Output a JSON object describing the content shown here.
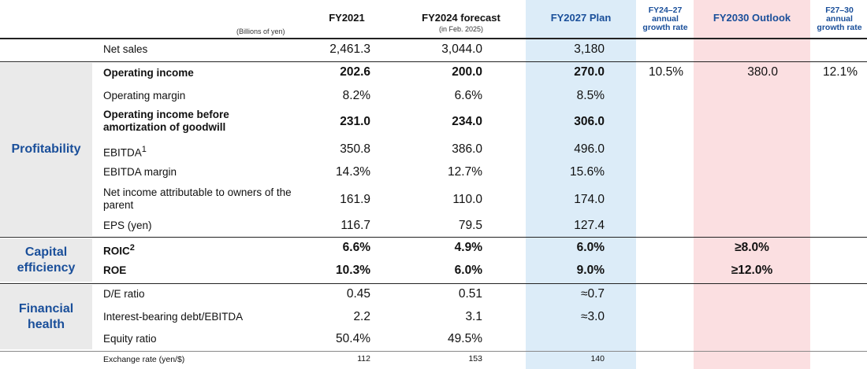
{
  "header": {
    "unit": "(Billions of yen)",
    "fy2021": "FY2021",
    "fy2024": "FY2024 forecast",
    "fy2024_sub": "(in Feb. 2025)",
    "fy2027": "FY2027 Plan",
    "growth1": "FY24–27 annual growth rate",
    "fy2030": "FY2030 Outlook",
    "growth2": "F27–30 annual growth rate"
  },
  "categories": {
    "profitability": "Profitability",
    "capital": "Capital efficiency",
    "financial": "Financial health"
  },
  "rows": {
    "net_sales": {
      "label": "Net sales",
      "fy2021": "2,461.3",
      "fy2024": "3,044.0",
      "fy2027": "3,180"
    },
    "op_income": {
      "label": "Operating income",
      "fy2021": "202.6",
      "fy2024": "200.0",
      "fy2027": "270.0",
      "growth1": "10.5%",
      "fy2030": "380.0",
      "growth2": "12.1%"
    },
    "op_margin": {
      "label": "Operating margin",
      "fy2021": "8.2%",
      "fy2024": "6.6%",
      "fy2027": "8.5%"
    },
    "op_before_goodwill": {
      "label": "Operating income before amortization of goodwill",
      "fy2021": "231.0",
      "fy2024": "234.0",
      "fy2027": "306.0"
    },
    "ebitda": {
      "label": "EBITDA",
      "sup": "1",
      "fy2021": "350.8",
      "fy2024": "386.0",
      "fy2027": "496.0"
    },
    "ebitda_margin": {
      "label": "EBITDA margin",
      "fy2021": "14.3%",
      "fy2024": "12.7%",
      "fy2027": "15.6%"
    },
    "net_income": {
      "label": "Net income attributable to owners of the parent",
      "fy2021": "161.9",
      "fy2024": "110.0",
      "fy2027": "174.0"
    },
    "eps": {
      "label": "EPS (yen)",
      "fy2021": "116.7",
      "fy2024": "79.5",
      "fy2027": "127.4"
    },
    "roic": {
      "label": "ROIC",
      "sup": "2",
      "fy2021": "6.6%",
      "fy2024": "4.9%",
      "fy2027": "6.0%",
      "fy2030": "≥8.0%"
    },
    "roe": {
      "label": "ROE",
      "fy2021": "10.3%",
      "fy2024": "6.0%",
      "fy2027": "9.0%",
      "fy2030": "≥12.0%"
    },
    "de_ratio": {
      "label": "D/E ratio",
      "fy2021": "0.45",
      "fy2024": "0.51",
      "fy2027": "≈0.7"
    },
    "debt_ebitda": {
      "label": "Interest-bearing debt/EBITDA",
      "fy2021": "2.2",
      "fy2024": "3.1",
      "fy2027": "≈3.0"
    },
    "equity_ratio": {
      "label": "Equity ratio",
      "fy2021": "50.4%",
      "fy2024": "49.5%"
    },
    "exchange": {
      "label": "Exchange rate (yen/$)",
      "fy2021": "112",
      "fy2024": "153",
      "fy2027": "140"
    }
  }
}
